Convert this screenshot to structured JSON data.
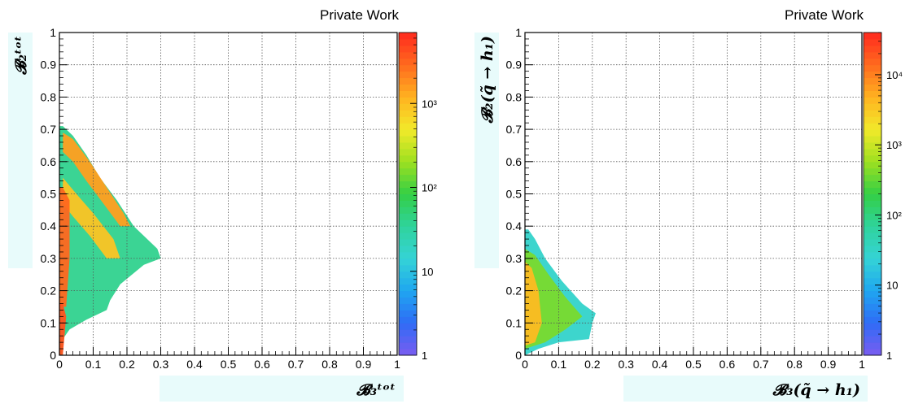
{
  "chart_data": [
    {
      "type": "heatmap",
      "title": "",
      "banner": "Private Work",
      "xlabel": "𝓑₃ᵗᵒᵗ",
      "ylabel": "𝓑₂ᵗᵒᵗ",
      "xlim": [
        0,
        1
      ],
      "ylim": [
        0,
        1
      ],
      "x_ticks": [
        "0",
        "0.1",
        "0.2",
        "0.3",
        "0.4",
        "0.5",
        "0.6",
        "0.7",
        "0.8",
        "0.9",
        "1"
      ],
      "y_ticks": [
        "0",
        "0.1",
        "0.2",
        "0.3",
        "0.4",
        "0.5",
        "0.6",
        "0.7",
        "0.8",
        "0.9",
        "1"
      ],
      "grid": true,
      "z_scale": "log",
      "zlim": [
        1,
        7000
      ],
      "z_ticks": [
        {
          "value": 10,
          "label": "10"
        },
        {
          "value": 100,
          "label": "10²"
        },
        {
          "value": 1000,
          "label": "10³"
        }
      ],
      "colors": {
        "low": "#7b5cf0",
        "mid": "#34d3d6",
        "high": "#ff2a1e",
        "axis": "#000000",
        "band": "#e8fbfb"
      },
      "regions": [
        {
          "name": "outer envelope",
          "points": [
            [
              0,
              0
            ],
            [
              0.01,
              0
            ],
            [
              0.01,
              0.05
            ],
            [
              0.03,
              0.08
            ],
            [
              0.08,
              0.11
            ],
            [
              0.14,
              0.14
            ],
            [
              0.15,
              0.17
            ],
            [
              0.18,
              0.22
            ],
            [
              0.25,
              0.28
            ],
            [
              0.3,
              0.3
            ],
            [
              0.29,
              0.33
            ],
            [
              0.22,
              0.4
            ],
            [
              0.17,
              0.48
            ],
            [
              0.12,
              0.55
            ],
            [
              0.08,
              0.62
            ],
            [
              0.04,
              0.68
            ],
            [
              0.01,
              0.71
            ],
            [
              0,
              0.71
            ]
          ],
          "level": 40
        },
        {
          "name": "upper diagonal band",
          "points": [
            [
              0.01,
              0.69
            ],
            [
              0.04,
              0.67
            ],
            [
              0.09,
              0.6
            ],
            [
              0.14,
              0.52
            ],
            [
              0.19,
              0.44
            ],
            [
              0.21,
              0.4
            ],
            [
              0.18,
              0.4
            ],
            [
              0.13,
              0.47
            ],
            [
              0.08,
              0.54
            ],
            [
              0.04,
              0.6
            ],
            [
              0.01,
              0.63
            ]
          ],
          "level": 1500
        },
        {
          "name": "inner band",
          "points": [
            [
              0.01,
              0.55
            ],
            [
              0.05,
              0.5
            ],
            [
              0.1,
              0.44
            ],
            [
              0.16,
              0.36
            ],
            [
              0.18,
              0.3
            ],
            [
              0.14,
              0.3
            ],
            [
              0.09,
              0.37
            ],
            [
              0.04,
              0.43
            ],
            [
              0.01,
              0.47
            ]
          ],
          "level": 900
        },
        {
          "name": "left edge ridge",
          "points": [
            [
              0,
              0.15
            ],
            [
              0.02,
              0.15
            ],
            [
              0.03,
              0.3
            ],
            [
              0.03,
              0.48
            ],
            [
              0.01,
              0.52
            ],
            [
              0,
              0.52
            ]
          ],
          "level": 3000
        },
        {
          "name": "bottom tail",
          "points": [
            [
              0,
              0
            ],
            [
              0.01,
              0
            ],
            [
              0.02,
              0.12
            ],
            [
              0.01,
              0.16
            ],
            [
              0,
              0.16
            ]
          ],
          "level": 4000
        }
      ]
    },
    {
      "type": "heatmap",
      "title": "",
      "banner": "Private Work",
      "xlabel": "𝓑₃(q̃ → h₁)",
      "ylabel": "𝓑₂(q̃ → h₁)",
      "xlim": [
        0,
        1
      ],
      "ylim": [
        0,
        1
      ],
      "x_ticks": [
        "0",
        "0.1",
        "0.2",
        "0.3",
        "0.4",
        "0.5",
        "0.6",
        "0.7",
        "0.8",
        "0.9",
        "1"
      ],
      "y_ticks": [
        "0",
        "0.1",
        "0.2",
        "0.3",
        "0.4",
        "0.5",
        "0.6",
        "0.7",
        "0.8",
        "0.9",
        "1"
      ],
      "grid": true,
      "z_scale": "log",
      "zlim": [
        1,
        40000
      ],
      "z_ticks": [
        {
          "value": 10,
          "label": "10"
        },
        {
          "value": 100,
          "label": "10²"
        },
        {
          "value": 1000,
          "label": "10³"
        },
        {
          "value": 10000,
          "label": "10⁴"
        }
      ],
      "colors": {
        "low": "#7b5cf0",
        "mid": "#34d3d6",
        "high": "#ff2a1e",
        "axis": "#000000",
        "band": "#e8fbfb"
      },
      "regions": [
        {
          "name": "triangle envelope",
          "points": [
            [
              0,
              0
            ],
            [
              0.04,
              0.02
            ],
            [
              0.1,
              0.04
            ],
            [
              0.19,
              0.05
            ],
            [
              0.2,
              0.1
            ],
            [
              0.21,
              0.13
            ],
            [
              0.17,
              0.16
            ],
            [
              0.11,
              0.23
            ],
            [
              0.06,
              0.3
            ],
            [
              0.03,
              0.36
            ],
            [
              0.01,
              0.39
            ],
            [
              0,
              0.39
            ]
          ],
          "level": 30
        },
        {
          "name": "green core",
          "points": [
            [
              0,
              0.02
            ],
            [
              0.06,
              0.04
            ],
            [
              0.12,
              0.08
            ],
            [
              0.17,
              0.12
            ],
            [
              0.12,
              0.18
            ],
            [
              0.07,
              0.25
            ],
            [
              0.03,
              0.31
            ],
            [
              0,
              0.33
            ]
          ],
          "level": 400
        },
        {
          "name": "left ridge",
          "points": [
            [
              0,
              0.03
            ],
            [
              0.03,
              0.04
            ],
            [
              0.05,
              0.1
            ],
            [
              0.04,
              0.2
            ],
            [
              0.02,
              0.27
            ],
            [
              0,
              0.29
            ]
          ],
          "level": 4000
        }
      ]
    }
  ]
}
